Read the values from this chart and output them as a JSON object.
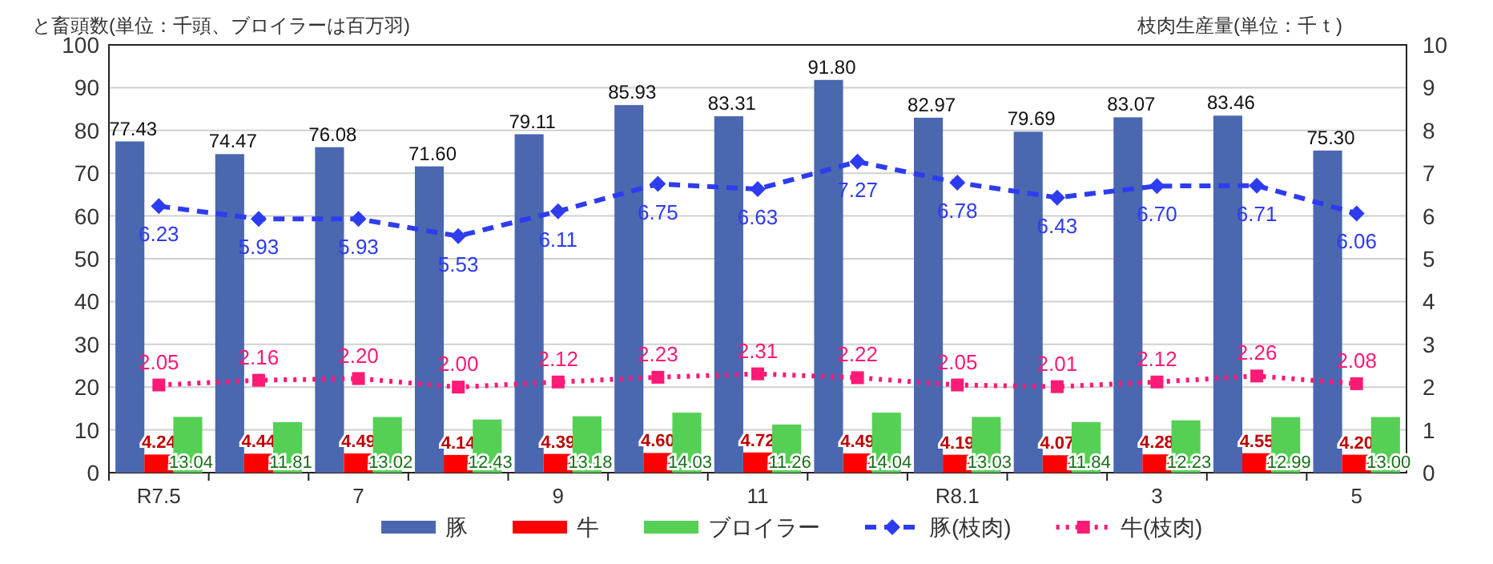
{
  "chart_data": {
    "type": "bar",
    "ylabel": "と畜頭数(単位：千頭、ブロイラーは百万羽)",
    "y2label": "枝肉生産量(単位：千ｔ)",
    "categories": [
      "R7.5",
      null,
      "7",
      null,
      "9",
      null,
      "11",
      null,
      "R8.1",
      null,
      "3",
      null,
      "5"
    ],
    "ylim": [
      0,
      100
    ],
    "yticks": [
      0,
      10,
      20,
      30,
      40,
      50,
      60,
      70,
      80,
      90,
      100
    ],
    "y2lim": [
      0,
      10
    ],
    "y2ticks": [
      0,
      1,
      2,
      3,
      4,
      5,
      6,
      7,
      8,
      9,
      10
    ],
    "grid": "y",
    "legend": "bottom",
    "data_labels": true,
    "series": [
      {
        "name": "豚",
        "color": "#4a67b0",
        "values": [
          77.43,
          74.47,
          76.08,
          71.6,
          79.11,
          85.93,
          83.31,
          91.8,
          82.97,
          79.69,
          83.07,
          83.46,
          75.3
        ],
        "value_labels": [
          "77.43",
          "74.47",
          "76.08",
          "71.60",
          "79.11",
          "85.93",
          "83.31",
          "91.80",
          "82.97",
          "79.69",
          "83.07",
          "83.46",
          "75.30"
        ]
      },
      {
        "name": "牛",
        "color": "#ff0000",
        "values": [
          4.24,
          4.44,
          4.49,
          4.14,
          4.39,
          4.6,
          4.72,
          4.49,
          4.19,
          4.07,
          4.28,
          4.55,
          4.2
        ],
        "value_labels": [
          "4.24",
          "4.44",
          "4.49",
          "4.14",
          "4.39",
          "4.60",
          "4.72",
          "4.49",
          "4.19",
          "4.07",
          "4.28",
          "4.55",
          "4.20"
        ]
      },
      {
        "name": "ブロイラー",
        "color": "#55d055",
        "values": [
          13.04,
          11.81,
          13.02,
          12.43,
          13.18,
          14.03,
          11.26,
          14.04,
          13.03,
          11.84,
          12.23,
          12.99,
          13.0
        ],
        "value_labels": [
          "13.04",
          "11.81",
          "13.02",
          "12.43",
          "13.18",
          "14.03",
          "11.26",
          "14.04",
          "13.03",
          "11.84",
          "12.23",
          "12.99",
          "13.00"
        ]
      },
      {
        "name": "豚(枝肉)",
        "type": "line",
        "axis": "y2",
        "color": "#2e3cf0",
        "marker": "diamond",
        "line_style": "dashed",
        "values": [
          6.23,
          5.93,
          5.93,
          5.53,
          6.11,
          6.75,
          6.63,
          7.27,
          6.78,
          6.43,
          6.7,
          6.71,
          6.06
        ],
        "value_labels": [
          "6.23",
          "5.93",
          "5.93",
          "5.53",
          "6.11",
          "6.75",
          "6.63",
          "7.27",
          "6.78",
          "6.43",
          "6.70",
          "6.71",
          "6.06"
        ]
      },
      {
        "name": "牛(枝肉)",
        "type": "line",
        "axis": "y2",
        "color": "#ff1a75",
        "marker": "square",
        "line_style": "dotted",
        "values": [
          2.05,
          2.16,
          2.2,
          2.0,
          2.12,
          2.23,
          2.31,
          2.22,
          2.05,
          2.01,
          2.12,
          2.26,
          2.08
        ],
        "value_labels": [
          "2.05",
          "2.16",
          "2.20",
          "2.00",
          "2.12",
          "2.23",
          "2.31",
          "2.22",
          "2.05",
          "2.01",
          "2.12",
          "2.26",
          "2.08"
        ]
      }
    ]
  }
}
